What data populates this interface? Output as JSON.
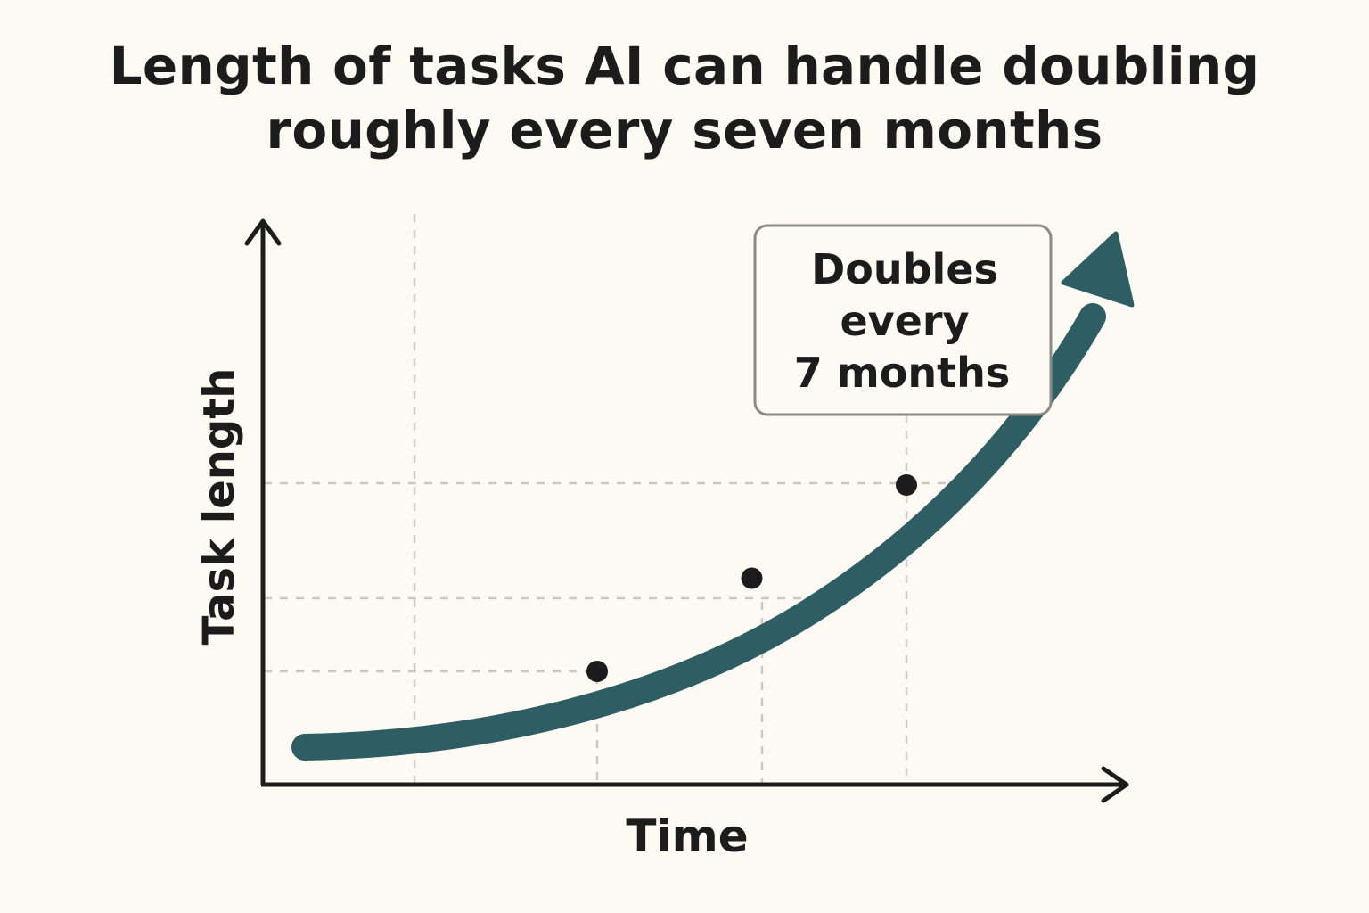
{
  "chart_data": {
    "type": "line",
    "title_lines": [
      "Length of tasks AI can handle doubling",
      "roughly every seven months"
    ],
    "xlabel": "Time",
    "ylabel": "Task length",
    "annotation_lines": [
      "Doubles",
      "every",
      "7 months"
    ],
    "tick_labels_shown": false,
    "grid": "dashed",
    "points": [
      {
        "x": 1,
        "y": 1
      },
      {
        "x": 2,
        "y": 2
      },
      {
        "x": 3,
        "y": 4
      }
    ],
    "colors": {
      "background": "#fcfaf3",
      "trend": "#2e5d63",
      "points": "#1c1c1c",
      "axes": "#1c1c1c",
      "grid": "#c8c8c4",
      "callout_border": "#8a8a86"
    }
  }
}
